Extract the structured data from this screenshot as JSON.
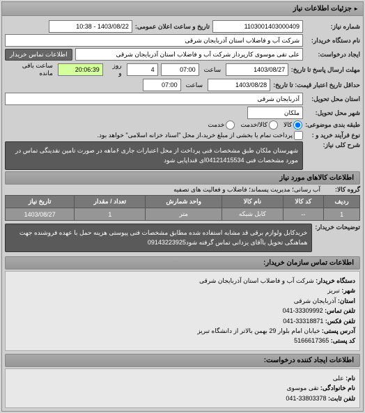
{
  "panel_title": "جزئیات اطلاعات نیاز",
  "row1": {
    "label_num": "شماره نیاز:",
    "number": "1103001403000409",
    "label_date": "تاریخ و ساعت اعلان عمومی:",
    "datetime": "1403/08/22 - 10:38"
  },
  "row2": {
    "label": "نام دستگاه خریدار:",
    "value": "شرکت آب و فاضلاب استان آذربایجان شرقی"
  },
  "row3": {
    "label": "ایجاد درخواست:",
    "value": "علی تقی موسوی کارپرداز شرکت آب و فاضلاب استان آذربایجان شرقی",
    "btn": "اطلاعات تماس خریدار"
  },
  "deadline": {
    "label": "مهلت ارسال پاسخ تا تاریخ:",
    "date": "1403/08/27",
    "time_label": "ساعت",
    "time": "07:00",
    "days_val": "4",
    "days_label": "روز و",
    "countdown": "20:06:39",
    "remain": "ساعت باقی مانده"
  },
  "expiry": {
    "label": "حداقل تاریخ اعتبار قیمت: تا تاریخ:",
    "date": "1403/08/28",
    "time_label": "ساعت",
    "time": "07:00"
  },
  "province": {
    "label": "استان محل تحویل:",
    "value": "آذربایجان شرقی"
  },
  "city": {
    "label": "شهر محل تحویل:",
    "value": "ملکان"
  },
  "packing": {
    "label": "طبقه بندی موضوعی:",
    "opt1": "کالا",
    "opt2": "کالا/خدمت",
    "opt3": "خدمت"
  },
  "process": {
    "label": "نوع فرآیند خرید و :",
    "chk1": "پرداخت تمام یا بخشی از مبلغ خرید،از محل \"اسناد خزانه اسلامی\" خواهد بود."
  },
  "short_desc": {
    "label": "شرح کلی نیاز:",
    "text": "شهرستان ملکان طبق مشخصات فنی پرداخت از محل اعتبارات جاری ۶ماهه در صورت تامین نقدینگی تماس در مورد مشخصات فنی 04121415534ای قنداپایی شود"
  },
  "goods_section": "اطلاعات کالاهای مورد نیاز",
  "goods_group": {
    "label": "گروه کالا:",
    "value": "آب رسانی؛ مدیریت پسماند؛ فاضلاب و فعالیت های تصفیه"
  },
  "table": {
    "headers": [
      "ردیف",
      "کد کالا",
      "نام کالا",
      "واحد شمارش",
      "تعداد / مقدار",
      "تاریخ نیاز"
    ],
    "rows": [
      [
        "1",
        "--",
        "کابل شبکه",
        "متر",
        "1",
        "1403/08/27"
      ]
    ]
  },
  "buyer_desc": {
    "label": "توضیحات خریدار:",
    "text": "خریدکابل ولوازم برقی قد مشابه استفاده شده مطابق مشخصات فنی پیوستی هزینه حمل با عهده فروشنده جهت هماهنگی تحویل باآقای یزدانی تماس گرفته شود09143223925"
  },
  "contact_section": "اطلاعات تماس سازمان خریدار:",
  "contact": {
    "org_label": "دستگاه خریدار:",
    "org": "شرکت آب و فاضلاب استان آذربایجان شرقی",
    "city_label": "شهر:",
    "city": "تبریز",
    "prov_label": "استان:",
    "prov": "آذربایجان شرقی",
    "phone_label": "تلفن تماس:",
    "phone": "33309992-041",
    "fax_label": "تلفن فکس:",
    "fax": "33318871-041",
    "addr_label": "آدرس پستی:",
    "addr": "خیابان امام بلوار 29 بهمن بالاتر از دانشگاه تبریز",
    "post_label": "کد پستی:",
    "post": "5166617365"
  },
  "creator_section": "اطلاعات ایجاد کننده درخواست:",
  "creator": {
    "name_label": "نام:",
    "name": "علی",
    "family_label": "نام خانوادگی:",
    "family": "تقی موسوی",
    "phone_label": "تلفن ثابت:",
    "phone": "33803378-041"
  }
}
